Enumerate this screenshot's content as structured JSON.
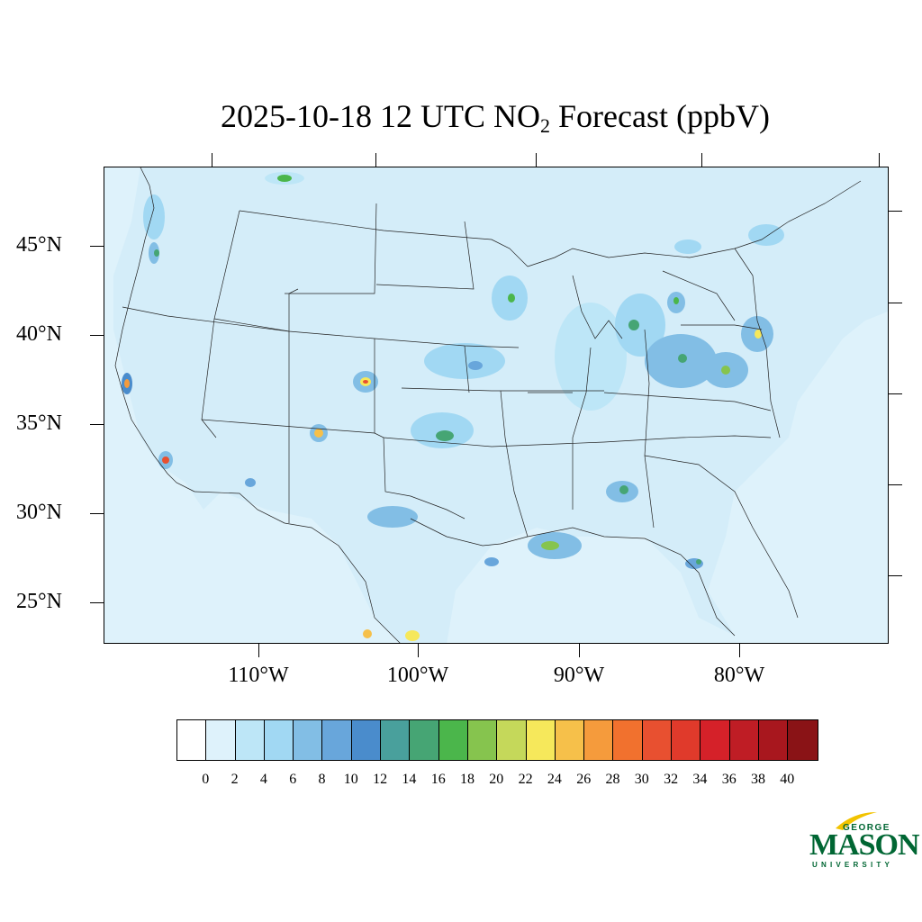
{
  "title": {
    "prefix": "2025-10-18 12 UTC NO",
    "subscript": "2",
    "suffix": " Forecast (ppbV)"
  },
  "map": {
    "lat_labels": [
      "45°N",
      "40°N",
      "35°N",
      "30°N",
      "25°N"
    ],
    "lon_labels": [
      "110°W",
      "100°W",
      "90°W",
      "80°W"
    ],
    "ocean_fill": "#def2fb"
  },
  "colorbar": {
    "labels": [
      "0",
      "2",
      "4",
      "6",
      "8",
      "10",
      "12",
      "14",
      "16",
      "18",
      "20",
      "22",
      "24",
      "26",
      "28",
      "30",
      "32",
      "34",
      "36",
      "38",
      "40"
    ],
    "colors": [
      "#ffffff",
      "#def2fb",
      "#bde6f7",
      "#a1d8f3",
      "#82bee5",
      "#68a6db",
      "#4a8ccc",
      "#49a09c",
      "#46a574",
      "#4bb64b",
      "#86c44e",
      "#c5d85a",
      "#f6e85b",
      "#f6c04a",
      "#f59b3c",
      "#f1712e",
      "#e85030",
      "#e03a2b",
      "#d52129",
      "#bf1d25",
      "#a8171e",
      "#8a1316"
    ]
  },
  "logo": {
    "george": "GEORGE",
    "mason": "MASON",
    "university": "UNIVERSITY"
  }
}
